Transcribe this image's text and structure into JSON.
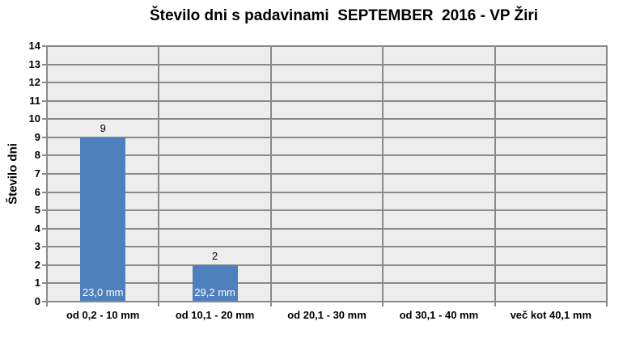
{
  "chart_data": {
    "type": "bar",
    "title": "Število dni s padavinami  SEPTEMBER  2016 - VP Žiri",
    "ylabel": "Število dni",
    "xlabel": "",
    "categories": [
      "od 0,2 - 10 mm",
      "od 10,1 - 20 mm",
      "od 20,1 - 30 mm",
      "od 30,1 - 40 mm",
      "več kot 40,1 mm"
    ],
    "values": [
      9,
      2,
      0,
      0,
      0
    ],
    "value_labels": [
      "9",
      "2",
      "",
      "",
      ""
    ],
    "inner_labels": [
      "23,0 mm",
      "29,2 mm",
      "",
      "",
      ""
    ],
    "ylim": [
      0,
      14
    ],
    "yticks": [
      0,
      1,
      2,
      3,
      4,
      5,
      6,
      7,
      8,
      9,
      10,
      11,
      12,
      13,
      14
    ],
    "grid": true,
    "legend": "none",
    "colors": {
      "bar": "#4E80BD",
      "plot_bg": "#EDEDED",
      "gridline": "#8A8A8A",
      "inner_label": "#FFFFFF",
      "value_label": "#000000",
      "background": "#FFFFFF"
    }
  }
}
